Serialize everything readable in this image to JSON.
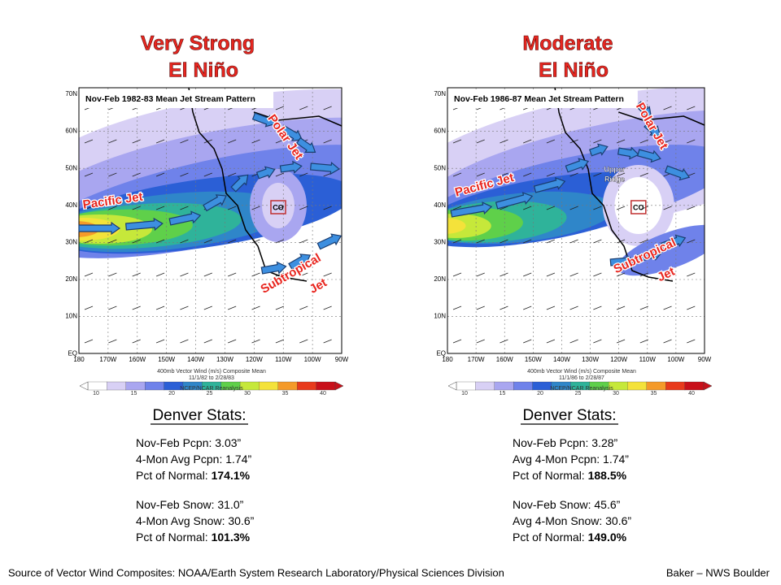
{
  "panels": [
    {
      "title": [
        "Very Strong",
        "El Niño"
      ],
      "map_title": "Nov-Feb 1982-83 Mean Jet Stream Pattern",
      "annotations": {
        "pacific_jet": "Pacific Jet",
        "polar_jet": "Polar Jet",
        "subtropical_jet": [
          "Subtropical",
          "Jet"
        ],
        "low": "CO"
      },
      "colorbar_caption": "400mb Vector Wind (m/s) Composite Mean",
      "date_range": "11/1/82 to 2/28/83",
      "credit": "NCEP/NCAR Reanalysis",
      "stats_heading": "Denver Stats:",
      "stats": [
        [
          {
            "label": "Nov-Feb Pcpn: ",
            "value": "3.03”"
          },
          {
            "label": "4-Mon Avg Pcpn: ",
            "value": "1.74”"
          },
          {
            "label": "Pct of Normal: ",
            "value": "174.1%",
            "bold": true
          }
        ],
        [
          {
            "label": "Nov-Feb Snow: ",
            "value": "31.0”"
          },
          {
            "label": "4-Mon Avg Snow: ",
            "value": "30.6”"
          },
          {
            "label": "Pct of Normal: ",
            "value": "101.3%",
            "bold": true
          }
        ]
      ]
    },
    {
      "title": [
        "Moderate",
        "El Niño"
      ],
      "map_title": "Nov-Feb 1986-87 Mean Jet Stream Pattern",
      "annotations": {
        "pacific_jet": "Pacific Jet",
        "polar_jet": "Polar Jet",
        "subtropical_jet": [
          "Subtropical",
          "Jet"
        ],
        "low": "CO",
        "ridge": [
          "Upper",
          "Ridge"
        ]
      },
      "colorbar_caption": "400mb Vector Wind (m/s) Composite Mean",
      "date_range": "11/1/86 to 2/28/87",
      "credit": "NCEP/NCAR Reanalysis",
      "stats_heading": "Denver Stats:",
      "stats": [
        [
          {
            "label": "Nov-Feb Pcpn: ",
            "value": "3.28”"
          },
          {
            "label": "Avg 4-Mon Pcpn: ",
            "value": "1.74”"
          },
          {
            "label": "Pct of Normal: ",
            "value": "188.5%",
            "bold": true
          }
        ],
        [
          {
            "label": "Nov-Feb Snow: ",
            "value": "45.6”"
          },
          {
            "label": "Avg 4-Mon Snow: ",
            "value": "30.6”"
          },
          {
            "label": "Pct of Normal: ",
            "value": "149.0%",
            "bold": true
          }
        ]
      ]
    }
  ],
  "lat_labels": [
    "70N",
    "60N",
    "50N",
    "40N",
    "30N",
    "20N",
    "10N",
    "EQ"
  ],
  "lon_labels": [
    "180",
    "170W",
    "160W",
    "150W",
    "140W",
    "130W",
    "120W",
    "110W",
    "100W",
    "90W"
  ],
  "colorbar_ticks": [
    "10",
    "15",
    "20",
    "25",
    "30",
    "35",
    "40"
  ],
  "footer": {
    "source": "Source of Vector Wind Composites: NOAA/Earth System Research Laboratory/Physical Sciences Division",
    "credit": "Baker – NWS Boulder"
  }
}
